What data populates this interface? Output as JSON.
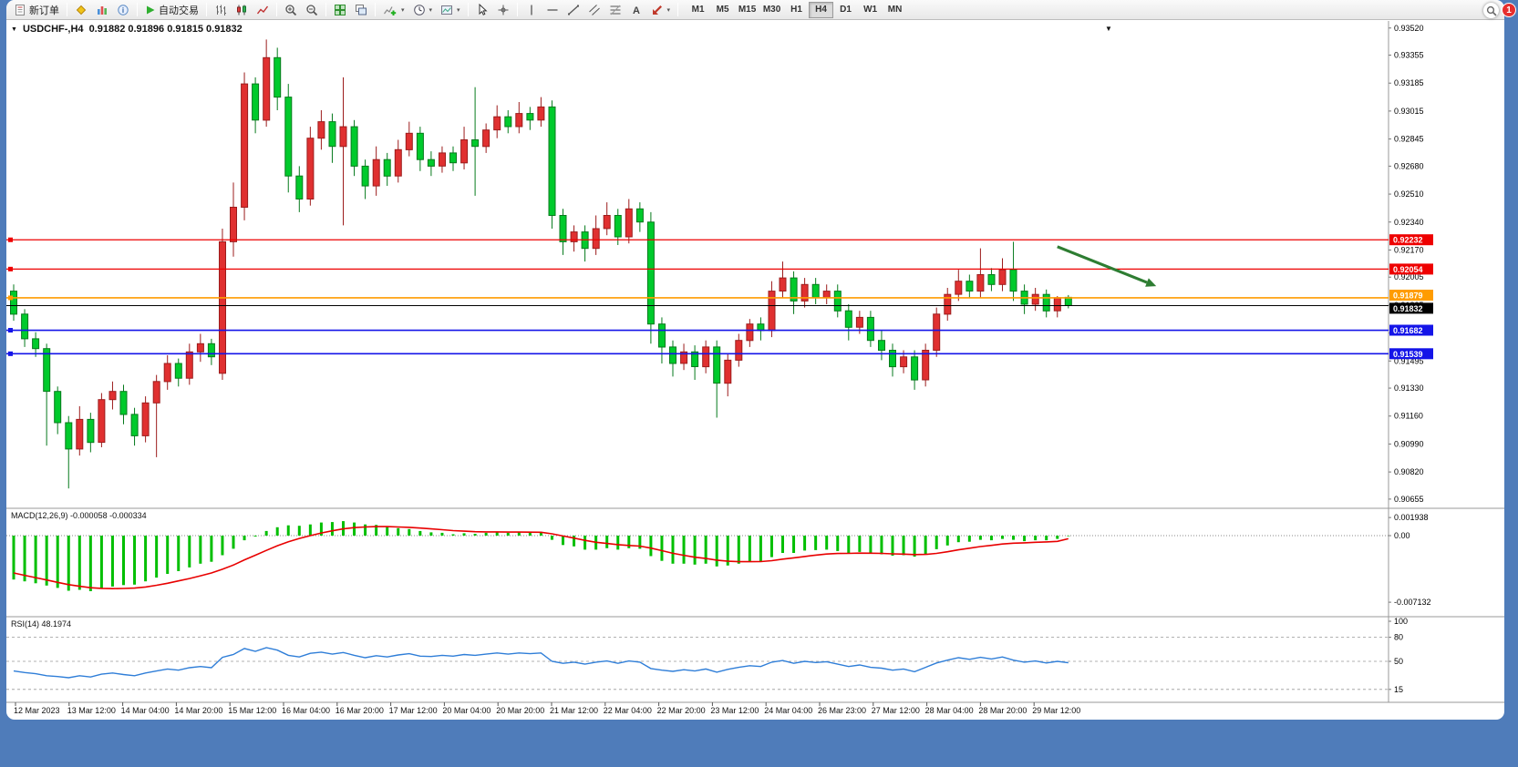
{
  "colors": {
    "up": "#e03030",
    "up_stroke": "#9c1c1c",
    "down": "#00ca2c",
    "down_stroke": "#067a1c",
    "macd_hist": "#00bf00",
    "macd_signal": "#e80000",
    "rsi_line": "#2f7ed8",
    "grid": "#9a9a9a",
    "red_level": "#ee0000",
    "orange_level": "#ff9c00",
    "blue_level": "#1414e8",
    "black_level": "#000000",
    "arrow": "#2e7d32",
    "frame": "#4f7cba"
  },
  "frame": {
    "badge_count": "1"
  },
  "toolbar": {
    "new_order_label": "新订单",
    "auto_trading_label": "自动交易",
    "timeframes": [
      "M1",
      "M5",
      "M15",
      "M30",
      "H1",
      "H4",
      "D1",
      "W1",
      "MN"
    ],
    "active_timeframe": "H4"
  },
  "chart": {
    "info_symbol": "USDCHF-,H4",
    "info_ohlc": "0.91882 0.91896 0.91815 0.91832",
    "y_axis_labels": [
      "0.93520",
      "0.93355",
      "0.93185",
      "0.93015",
      "0.92845",
      "0.92680",
      "0.92510",
      "0.92340",
      "0.92170",
      "0.92005",
      "0.91835",
      "0.91665",
      "0.91495",
      "0.91330",
      "0.91160",
      "0.90990",
      "0.90820",
      "0.90655"
    ],
    "levels": [
      {
        "label": "0.92232",
        "value": 0.92232,
        "style": "red"
      },
      {
        "label": "0.92054",
        "value": 0.92054,
        "style": "red"
      },
      {
        "label": "0.91879",
        "value": 0.91879,
        "style": "orange"
      },
      {
        "label": "0.91832",
        "value": 0.91832,
        "style": "black"
      },
      {
        "label": "0.91682",
        "value": 0.91682,
        "style": "blue"
      },
      {
        "label": "0.91539",
        "value": 0.91539,
        "style": "blue"
      }
    ],
    "arrow": {
      "from_bar": 95,
      "from_price": 0.9219,
      "to_bar": 104,
      "to_price": 0.9195,
      "color": "#2e7d32"
    },
    "macd_label": "MACD(12,26,9)",
    "macd_values": "-0.000058 -0.000334",
    "macd_scale": [
      {
        "label": "0.001938",
        "value": 0.001938
      },
      {
        "label": "0.00",
        "value": 0
      },
      {
        "label": "-0.007132",
        "value": -0.007132
      }
    ],
    "rsi_label": "RSI(14)",
    "rsi_value": "48.1974",
    "rsi_scale": [
      {
        "label": "100",
        "value": 100
      },
      {
        "label": "80",
        "value": 80
      },
      {
        "label": "50",
        "value": 50
      },
      {
        "label": "15",
        "value": 15
      }
    ]
  },
  "chart_data": {
    "type": "candlestick",
    "symbol": "USDCHF-",
    "timeframe": "H4",
    "ohlc": [
      [
        0.9192,
        0.9196,
        0.9174,
        0.9178
      ],
      [
        0.9178,
        0.9181,
        0.9158,
        0.9163
      ],
      [
        0.9163,
        0.9167,
        0.9152,
        0.9157
      ],
      [
        0.9157,
        0.916,
        0.9098,
        0.9131
      ],
      [
        0.9131,
        0.9134,
        0.9105,
        0.9112
      ],
      [
        0.9112,
        0.9116,
        0.9072,
        0.9096
      ],
      [
        0.9096,
        0.9122,
        0.9092,
        0.9114
      ],
      [
        0.9114,
        0.9118,
        0.9094,
        0.91
      ],
      [
        0.91,
        0.913,
        0.9097,
        0.9126
      ],
      [
        0.9126,
        0.9137,
        0.912,
        0.9131
      ],
      [
        0.9131,
        0.9135,
        0.9111,
        0.9117
      ],
      [
        0.9117,
        0.9121,
        0.9098,
        0.9104
      ],
      [
        0.9104,
        0.9128,
        0.91,
        0.9124
      ],
      [
        0.9124,
        0.9141,
        0.9091,
        0.9137
      ],
      [
        0.9137,
        0.9153,
        0.9132,
        0.9148
      ],
      [
        0.9148,
        0.9151,
        0.9134,
        0.9139
      ],
      [
        0.9139,
        0.916,
        0.9135,
        0.9155
      ],
      [
        0.9155,
        0.9166,
        0.9149,
        0.916
      ],
      [
        0.916,
        0.9163,
        0.9147,
        0.9152
      ],
      [
        0.9142,
        0.923,
        0.9138,
        0.9222
      ],
      [
        0.9222,
        0.9258,
        0.9213,
        0.9243
      ],
      [
        0.9243,
        0.9325,
        0.9235,
        0.9318
      ],
      [
        0.9318,
        0.9322,
        0.9288,
        0.9296
      ],
      [
        0.9296,
        0.9345,
        0.9292,
        0.9334
      ],
      [
        0.9334,
        0.934,
        0.9302,
        0.931
      ],
      [
        0.931,
        0.9318,
        0.9252,
        0.9262
      ],
      [
        0.9262,
        0.9268,
        0.924,
        0.9248
      ],
      [
        0.9248,
        0.9292,
        0.9244,
        0.9285
      ],
      [
        0.9285,
        0.9302,
        0.9278,
        0.9295
      ],
      [
        0.9295,
        0.93,
        0.927,
        0.928
      ],
      [
        0.928,
        0.9322,
        0.9232,
        0.9292
      ],
      [
        0.9292,
        0.9296,
        0.9262,
        0.9268
      ],
      [
        0.9268,
        0.9272,
        0.9248,
        0.9256
      ],
      [
        0.9256,
        0.928,
        0.925,
        0.9272
      ],
      [
        0.9272,
        0.9276,
        0.9256,
        0.9262
      ],
      [
        0.9262,
        0.9284,
        0.9258,
        0.9278
      ],
      [
        0.9278,
        0.9295,
        0.9274,
        0.9288
      ],
      [
        0.9288,
        0.9292,
        0.9265,
        0.9272
      ],
      [
        0.9272,
        0.9277,
        0.9262,
        0.9268
      ],
      [
        0.9268,
        0.928,
        0.9264,
        0.9276
      ],
      [
        0.9276,
        0.928,
        0.9265,
        0.927
      ],
      [
        0.927,
        0.9292,
        0.9266,
        0.9284
      ],
      [
        0.9284,
        0.9316,
        0.925,
        0.928
      ],
      [
        0.928,
        0.9294,
        0.9276,
        0.929
      ],
      [
        0.929,
        0.9305,
        0.9285,
        0.9298
      ],
      [
        0.9298,
        0.9302,
        0.9288,
        0.9292
      ],
      [
        0.9292,
        0.9307,
        0.9288,
        0.93
      ],
      [
        0.93,
        0.9304,
        0.929,
        0.9296
      ],
      [
        0.9296,
        0.931,
        0.9292,
        0.9304
      ],
      [
        0.9304,
        0.9308,
        0.923,
        0.9238
      ],
      [
        0.9238,
        0.9242,
        0.9214,
        0.9222
      ],
      [
        0.9222,
        0.9232,
        0.9216,
        0.9228
      ],
      [
        0.9228,
        0.9232,
        0.921,
        0.9218
      ],
      [
        0.9218,
        0.9238,
        0.9214,
        0.923
      ],
      [
        0.923,
        0.9246,
        0.9226,
        0.9238
      ],
      [
        0.9238,
        0.9242,
        0.922,
        0.9225
      ],
      [
        0.9225,
        0.9248,
        0.9221,
        0.9242
      ],
      [
        0.9242,
        0.9246,
        0.9228,
        0.9234
      ],
      [
        0.9234,
        0.924,
        0.916,
        0.9172
      ],
      [
        0.9172,
        0.9176,
        0.9148,
        0.9158
      ],
      [
        0.9158,
        0.9162,
        0.914,
        0.9148
      ],
      [
        0.9148,
        0.916,
        0.9144,
        0.9155
      ],
      [
        0.9155,
        0.9159,
        0.9138,
        0.9146
      ],
      [
        0.9146,
        0.9162,
        0.9142,
        0.9158
      ],
      [
        0.9158,
        0.9162,
        0.9115,
        0.9136
      ],
      [
        0.9136,
        0.9154,
        0.9128,
        0.915
      ],
      [
        0.915,
        0.9166,
        0.9146,
        0.9162
      ],
      [
        0.9162,
        0.9175,
        0.9158,
        0.9172
      ],
      [
        0.9172,
        0.9176,
        0.9162,
        0.9168
      ],
      [
        0.9168,
        0.9198,
        0.9164,
        0.9192
      ],
      [
        0.9192,
        0.921,
        0.9188,
        0.92
      ],
      [
        0.92,
        0.9204,
        0.9178,
        0.9186
      ],
      [
        0.9186,
        0.92,
        0.9182,
        0.9196
      ],
      [
        0.9196,
        0.92,
        0.9184,
        0.9188
      ],
      [
        0.9188,
        0.9196,
        0.9184,
        0.9192
      ],
      [
        0.9192,
        0.9196,
        0.9176,
        0.918
      ],
      [
        0.918,
        0.9184,
        0.9162,
        0.917
      ],
      [
        0.917,
        0.918,
        0.9166,
        0.9176
      ],
      [
        0.9176,
        0.918,
        0.9158,
        0.9162
      ],
      [
        0.9162,
        0.9168,
        0.915,
        0.9156
      ],
      [
        0.9156,
        0.916,
        0.914,
        0.9146
      ],
      [
        0.9146,
        0.9156,
        0.9142,
        0.9152
      ],
      [
        0.9152,
        0.9156,
        0.9132,
        0.9138
      ],
      [
        0.9138,
        0.916,
        0.9134,
        0.9156
      ],
      [
        0.9156,
        0.9182,
        0.9152,
        0.9178
      ],
      [
        0.9178,
        0.9194,
        0.9174,
        0.919
      ],
      [
        0.919,
        0.9205,
        0.9186,
        0.9198
      ],
      [
        0.9198,
        0.9202,
        0.9188,
        0.9192
      ],
      [
        0.9192,
        0.9218,
        0.9188,
        0.9202
      ],
      [
        0.9202,
        0.9206,
        0.9192,
        0.9196
      ],
      [
        0.9196,
        0.9212,
        0.9192,
        0.9205
      ],
      [
        0.9205,
        0.9222,
        0.9186,
        0.9192
      ],
      [
        0.9192,
        0.9196,
        0.9178,
        0.9184
      ],
      [
        0.9184,
        0.9194,
        0.918,
        0.919
      ],
      [
        0.919,
        0.9193,
        0.9176,
        0.918
      ],
      [
        0.918,
        0.9189,
        0.9176,
        0.9188
      ],
      [
        0.91882,
        0.91896,
        0.91815,
        0.91832
      ]
    ],
    "indicators": [
      {
        "name": "MACD",
        "params": [
          12,
          26,
          9
        ],
        "current": "-0.000058 -0.000334",
        "values_scale": 0.001,
        "histogram": [
          -4.7,
          -4.9,
          -5.1,
          -5.35,
          -5.6,
          -5.9,
          -5.8,
          -5.95,
          -5.7,
          -5.45,
          -5.3,
          -5.25,
          -4.9,
          -4.5,
          -4.1,
          -3.8,
          -3.4,
          -3.0,
          -2.8,
          -2.1,
          -1.4,
          -0.5,
          -0.1,
          0.5,
          0.9,
          1.1,
          1.05,
          1.2,
          1.4,
          1.45,
          1.55,
          1.4,
          1.2,
          1.15,
          0.95,
          0.8,
          0.7,
          0.5,
          0.35,
          0.3,
          0.15,
          0.25,
          0.2,
          0.3,
          0.4,
          0.3,
          0.4,
          0.3,
          0.35,
          -0.45,
          -1.0,
          -1.15,
          -1.5,
          -1.5,
          -1.35,
          -1.5,
          -1.35,
          -1.4,
          -2.2,
          -2.7,
          -3.0,
          -3.0,
          -3.1,
          -3.0,
          -3.3,
          -3.2,
          -3.0,
          -2.8,
          -2.75,
          -2.3,
          -1.85,
          -1.85,
          -1.6,
          -1.55,
          -1.5,
          -1.65,
          -1.85,
          -1.75,
          -1.9,
          -2.0,
          -2.15,
          -2.1,
          -2.25,
          -1.95,
          -1.45,
          -1.05,
          -0.7,
          -0.65,
          -0.45,
          -0.5,
          -0.35,
          -0.45,
          -0.6,
          -0.5,
          -0.5,
          -0.35,
          -0.058
        ],
        "signal": [
          -4.0,
          -4.25,
          -4.5,
          -4.75,
          -5.0,
          -5.25,
          -5.42,
          -5.58,
          -5.65,
          -5.68,
          -5.66,
          -5.62,
          -5.5,
          -5.32,
          -5.1,
          -4.85,
          -4.6,
          -4.3,
          -4.0,
          -3.6,
          -3.15,
          -2.6,
          -2.1,
          -1.58,
          -1.08,
          -0.65,
          -0.3,
          0.0,
          0.28,
          0.52,
          0.72,
          0.86,
          0.93,
          0.97,
          0.97,
          0.93,
          0.89,
          0.81,
          0.72,
          0.63,
          0.54,
          0.48,
          0.42,
          0.4,
          0.4,
          0.38,
          0.38,
          0.37,
          0.36,
          0.2,
          -0.04,
          -0.26,
          -0.51,
          -0.71,
          -0.84,
          -0.97,
          -1.05,
          -1.12,
          -1.34,
          -1.61,
          -1.89,
          -2.11,
          -2.31,
          -2.45,
          -2.62,
          -2.74,
          -2.79,
          -2.79,
          -2.78,
          -2.68,
          -2.52,
          -2.38,
          -2.23,
          -2.09,
          -1.97,
          -1.91,
          -1.9,
          -1.87,
          -1.88,
          -1.9,
          -1.95,
          -1.98,
          -2.03,
          -2.01,
          -1.9,
          -1.73,
          -1.52,
          -1.35,
          -1.17,
          -1.04,
          -0.9,
          -0.81,
          -0.77,
          -0.71,
          -0.67,
          -0.61,
          -0.334
        ]
      },
      {
        "name": "RSI",
        "params": [
          14
        ],
        "current": 48.1974,
        "values": [
          38,
          36,
          34.5,
          32,
          31,
          29.5,
          32,
          30.5,
          34,
          35.5,
          33.5,
          32,
          35.5,
          38,
          40.5,
          39,
          42,
          43.5,
          42,
          55,
          58.5,
          66,
          62.5,
          67,
          64,
          57.5,
          55.5,
          60,
          61.5,
          59,
          61,
          57.5,
          54.5,
          57,
          55.5,
          58,
          59.5,
          56.5,
          56,
          57.5,
          56.5,
          58.5,
          57.5,
          59,
          60.5,
          59,
          60.5,
          59.5,
          60.5,
          50,
          47.5,
          49,
          46.5,
          49,
          50.5,
          47.5,
          50.5,
          49,
          41,
          39,
          37.5,
          39.5,
          38,
          40.5,
          36.5,
          40,
          42.5,
          44.5,
          43.5,
          49,
          51,
          47.5,
          50,
          48.5,
          49.5,
          46.5,
          43.5,
          45.5,
          42.5,
          41.5,
          39,
          40.5,
          37,
          42.5,
          48,
          51.5,
          54.5,
          52.5,
          55,
          53,
          55.5,
          51.5,
          49,
          50.5,
          48,
          50,
          48.1974
        ]
      }
    ],
    "x_labels": [
      "12 Mar 2023",
      "13 Mar 12:00",
      "14 Mar 04:00",
      "14 Mar 20:00",
      "15 Mar 12:00",
      "16 Mar 04:00",
      "16 Mar 20:00",
      "17 Mar 12:00",
      "20 Mar 04:00",
      "20 Mar 20:00",
      "21 Mar 12:00",
      "22 Mar 04:00",
      "22 Mar 20:00",
      "23 Mar 12:00",
      "24 Mar 04:00",
      "26 Mar 23:00",
      "27 Mar 12:00",
      "28 Mar 04:00",
      "28 Mar 20:00",
      "29 Mar 12:00"
    ]
  }
}
